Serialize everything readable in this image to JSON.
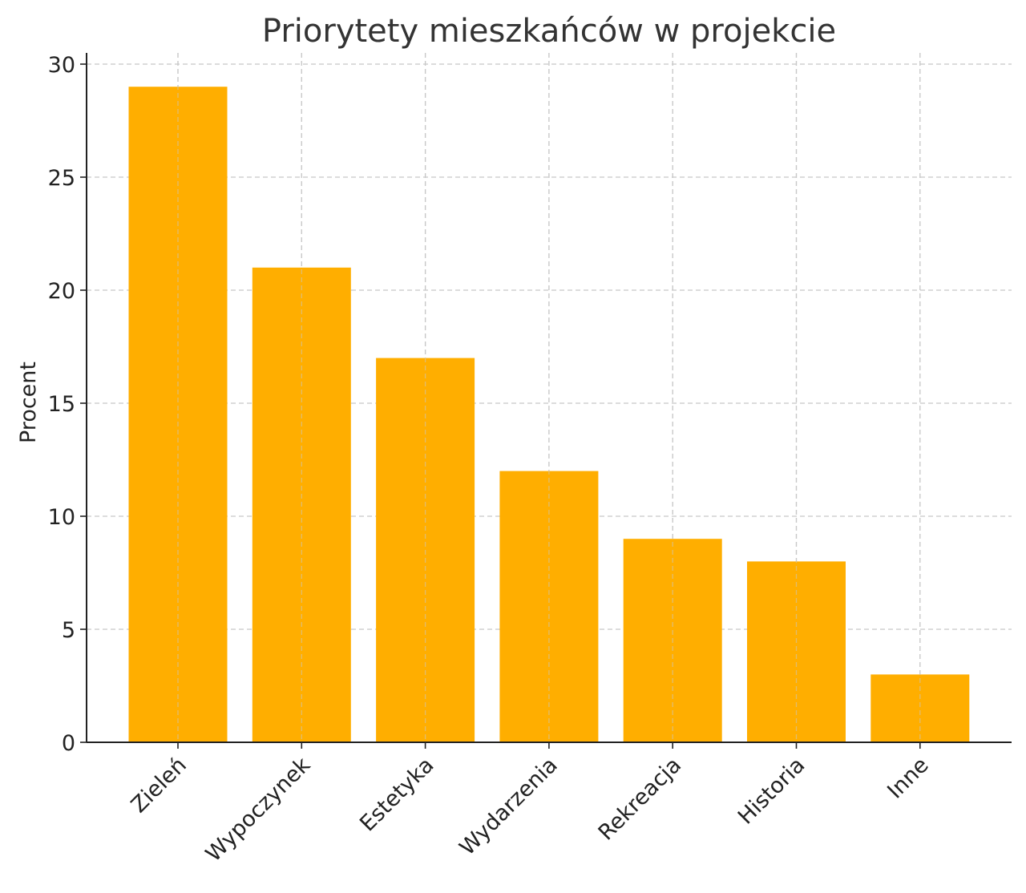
{
  "chart_data": {
    "type": "bar",
    "title": "Priorytety mieszkańców w projekcie",
    "xlabel": "",
    "ylabel": "Procent",
    "categories": [
      "Zieleń",
      "Wypoczynek",
      "Estetyka",
      "Wydarzenia",
      "Rekreacja",
      "Historia",
      "Inne"
    ],
    "values": [
      29,
      21,
      17,
      12,
      9,
      8,
      3
    ],
    "ylim": [
      0,
      30
    ],
    "yticks": [
      0,
      5,
      10,
      15,
      20,
      25,
      30
    ],
    "grid": true,
    "bar_color": "#FFAE00",
    "legend": null
  }
}
